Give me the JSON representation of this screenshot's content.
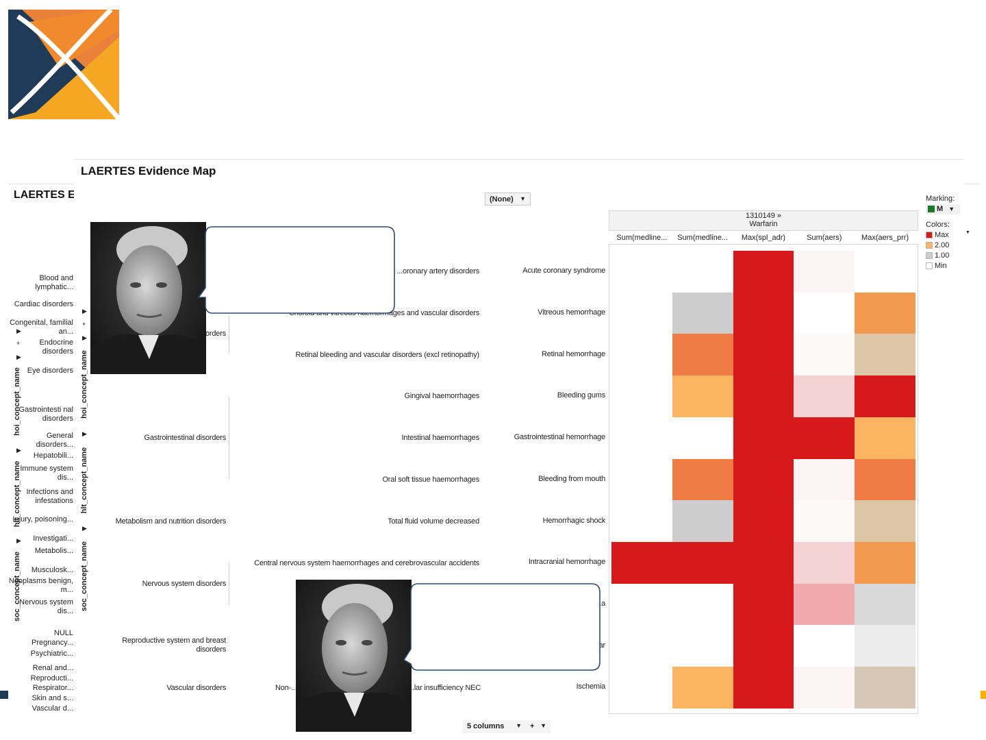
{
  "page": {
    "back_title": "LAERTES E",
    "title": "LAERTES Evidence Map"
  },
  "controls": {
    "color_by": "(None)",
    "columns": "5 columns",
    "plus": "+"
  },
  "axis_labels": {
    "soc": "soc_concept_name",
    "hlt": "hlt_concept_name",
    "hoi": "hoi_concept_name"
  },
  "soc_sidebar": [
    "Blood and lymphatic...",
    "Cardiac disorders",
    "Congenital, familial an...",
    "Endocrine disorders",
    "Eye disorders",
    "Gastrointesti nal disorders",
    "General disorders...",
    "Hepatobili...",
    "Immune system dis...",
    "Infections and infestations",
    "Injury, poisoning...",
    "Investigati...",
    "Metabolis...",
    "Musculosk...",
    "Neoplasms benign, m...",
    "Nervous system dis...",
    "NULL",
    "Pregnancy...",
    "Psychiatric...",
    "Renal and...",
    "Reproducti...",
    "Respirator...",
    "Skin and s...",
    "Vascular d..."
  ],
  "soc_groups": [
    "...orders",
    "Gastrointestinal disorders",
    "Metabolism and nutrition disorders",
    "Nervous system disorders",
    "Reproductive system and breast disorders",
    "Vascular disorders"
  ],
  "hlt_rows": [
    "...oronary artery disorders",
    "Choroid and vitreous haemorrhages and vascular disorders",
    "Retinal bleeding and vascular disorders (excl retinopathy)",
    "Gingival haemorrhages",
    "Intestinal haemorrhages",
    "Oral soft tissue haemorrhages",
    "Total fluid volume decreased",
    "Central nervous system haemorrhages and cerebrovascular accidents",
    "",
    "",
    "Non-...",
    "...lar insufficiency NEC"
  ],
  "hoi_rows": [
    "Acute coronary syndrome",
    "Vitreous hemorrhage",
    "Retinal hemorrhage",
    "Bleeding gums",
    "Gastrointestinal hemorrhage",
    "Bleeding from mouth",
    "Hemorrhagic shock",
    "Intracranial hemorrhage",
    "...a",
    "...ar",
    "Ischemia"
  ],
  "heatmap": {
    "drug_id": "1310149 »",
    "drug_name": "Warfarin",
    "columns": [
      "Sum(medline...",
      "Sum(medline...",
      "Max(spl_adr)",
      "Sum(aers)",
      "Max(aers_prr)"
    ],
    "colors": {
      "white": "#ffffff",
      "red": "#d7191c",
      "orange": "#ef7b45",
      "lightorange": "#fbb562",
      "midorange": "#f3994f",
      "gray": "#cdcdcd",
      "lightgray": "#d8d8d8",
      "vlightgray": "#ececec",
      "tan": "#dcc6a6",
      "lighttan": "#d6c7b4",
      "pale1": "#fcf4f4",
      "pale2": "#f7dede",
      "pale3": "#f5d3d5",
      "pink": "#f0a9ad",
      "pale0": "#fdf9f9"
    },
    "cells": [
      [
        "white",
        "white",
        "red",
        "pale1",
        "white"
      ],
      [
        "white",
        "gray",
        "red",
        "white",
        "midorange"
      ],
      [
        "white",
        "orange",
        "red",
        "pale0",
        "tan"
      ],
      [
        "white",
        "lightorange",
        "red",
        "pale3",
        "red"
      ],
      [
        "white",
        "white",
        "red",
        "red",
        "lightorange"
      ],
      [
        "white",
        "orange",
        "red",
        "pale1",
        "orange"
      ],
      [
        "white",
        "gray",
        "red",
        "pale0",
        "tan"
      ],
      [
        "red",
        "red",
        "red",
        "pale3",
        "midorange"
      ],
      [
        "white",
        "white",
        "red",
        "pink",
        "lightgray"
      ],
      [
        "white",
        "white",
        "red",
        "white",
        "vlightgray"
      ],
      [
        "white",
        "lightorange",
        "red",
        "pale1",
        "lighttan"
      ]
    ]
  },
  "legend": {
    "marking_label": "Marking:",
    "marking_value": "M",
    "colors_label": "Colors:",
    "items": [
      {
        "label": "Max",
        "color": "#d7191c"
      },
      {
        "label": "2.00",
        "color": "#fbb562"
      },
      {
        "label": "1.00",
        "color": "#cdcdcd"
      },
      {
        "label": "Min",
        "color": "#ffffff"
      }
    ]
  }
}
